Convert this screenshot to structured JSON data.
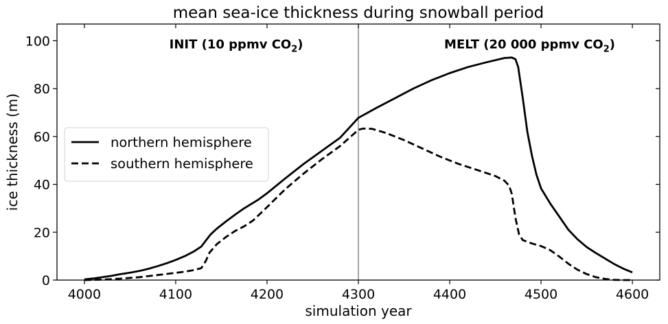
{
  "chart_data": {
    "type": "line",
    "title": "mean sea-ice thickness during snowball period",
    "xlabel": "simulation year",
    "ylabel": "ice thickness (m)",
    "xlim": [
      3970,
      4630
    ],
    "ylim": [
      0,
      107
    ],
    "xticks": [
      4000,
      4100,
      4200,
      4300,
      4400,
      4500,
      4600
    ],
    "yticks": [
      0,
      20,
      40,
      60,
      80,
      100
    ],
    "grid": false,
    "legend_position": "center-left",
    "vline": {
      "x": 4300,
      "color": "#808080"
    },
    "annotations": [
      {
        "text": "INIT (10 ppmv CO",
        "sub": "2",
        "close": ")",
        "x": 4093,
        "y": 98.5
      },
      {
        "text": "MELT (20 000 ppmv CO",
        "sub": "2",
        "close": ")",
        "x": 4394,
        "y": 98.5
      }
    ],
    "series": [
      {
        "name": "northern hemisphere",
        "style": "solid",
        "color": "#000000",
        "x": [
          4000,
          4010,
          4020,
          4030,
          4040,
          4050,
          4060,
          4070,
          4080,
          4090,
          4100,
          4110,
          4120,
          4128,
          4133,
          4138,
          4145,
          4155,
          4165,
          4175,
          4190,
          4200,
          4220,
          4240,
          4260,
          4280,
          4300,
          4320,
          4340,
          4360,
          4380,
          4400,
          4420,
          4440,
          4460,
          4468,
          4472,
          4475,
          4480,
          4485,
          4490,
          4495,
          4500,
          4510,
          4520,
          4530,
          4540,
          4550,
          4560,
          4570,
          4580,
          4590,
          4600
        ],
        "y": [
          0.3,
          0.7,
          1.2,
          1.8,
          2.5,
          3.1,
          3.8,
          4.7,
          5.8,
          7.0,
          8.4,
          10.0,
          12.0,
          14.0,
          16.5,
          19.0,
          21.5,
          24.5,
          27.3,
          30.0,
          33.5,
          36.3,
          42.5,
          48.5,
          54.0,
          59.5,
          67.8,
          72.0,
          76.0,
          80.0,
          83.5,
          86.5,
          89.0,
          91.0,
          92.8,
          93.0,
          92.3,
          89.0,
          76.0,
          62.0,
          52.0,
          44.0,
          38.3,
          32.0,
          26.5,
          21.0,
          17.0,
          13.8,
          11.3,
          9.0,
          6.7,
          4.8,
          3.2
        ]
      },
      {
        "name": "southern hemisphere",
        "style": "dashed",
        "color": "#000000",
        "x": [
          4000,
          4020,
          4040,
          4060,
          4080,
          4100,
          4110,
          4120,
          4128,
          4133,
          4137,
          4145,
          4155,
          4165,
          4175,
          4185,
          4200,
          4220,
          4240,
          4260,
          4280,
          4300,
          4305,
          4315,
          4330,
          4350,
          4370,
          4390,
          4410,
          4430,
          4450,
          4460,
          4465,
          4468,
          4472,
          4476,
          4480,
          4490,
          4500,
          4510,
          4520,
          4530,
          4540,
          4550,
          4560,
          4570,
          4580,
          4590,
          4600
        ],
        "y": [
          0.0,
          0.2,
          0.6,
          1.2,
          2.1,
          3.0,
          3.5,
          4.2,
          5.0,
          8.0,
          11.5,
          15.0,
          18.0,
          20.5,
          22.5,
          25.0,
          30.5,
          38.0,
          44.5,
          50.5,
          56.0,
          62.8,
          63.3,
          63.2,
          61.5,
          58.5,
          55.0,
          51.5,
          48.5,
          46.0,
          43.5,
          41.5,
          39.5,
          36.0,
          26.0,
          19.0,
          16.7,
          15.3,
          14.2,
          12.5,
          9.8,
          6.8,
          4.3,
          2.5,
          1.2,
          0.5,
          0.1,
          0.0,
          0.0
        ]
      }
    ]
  }
}
